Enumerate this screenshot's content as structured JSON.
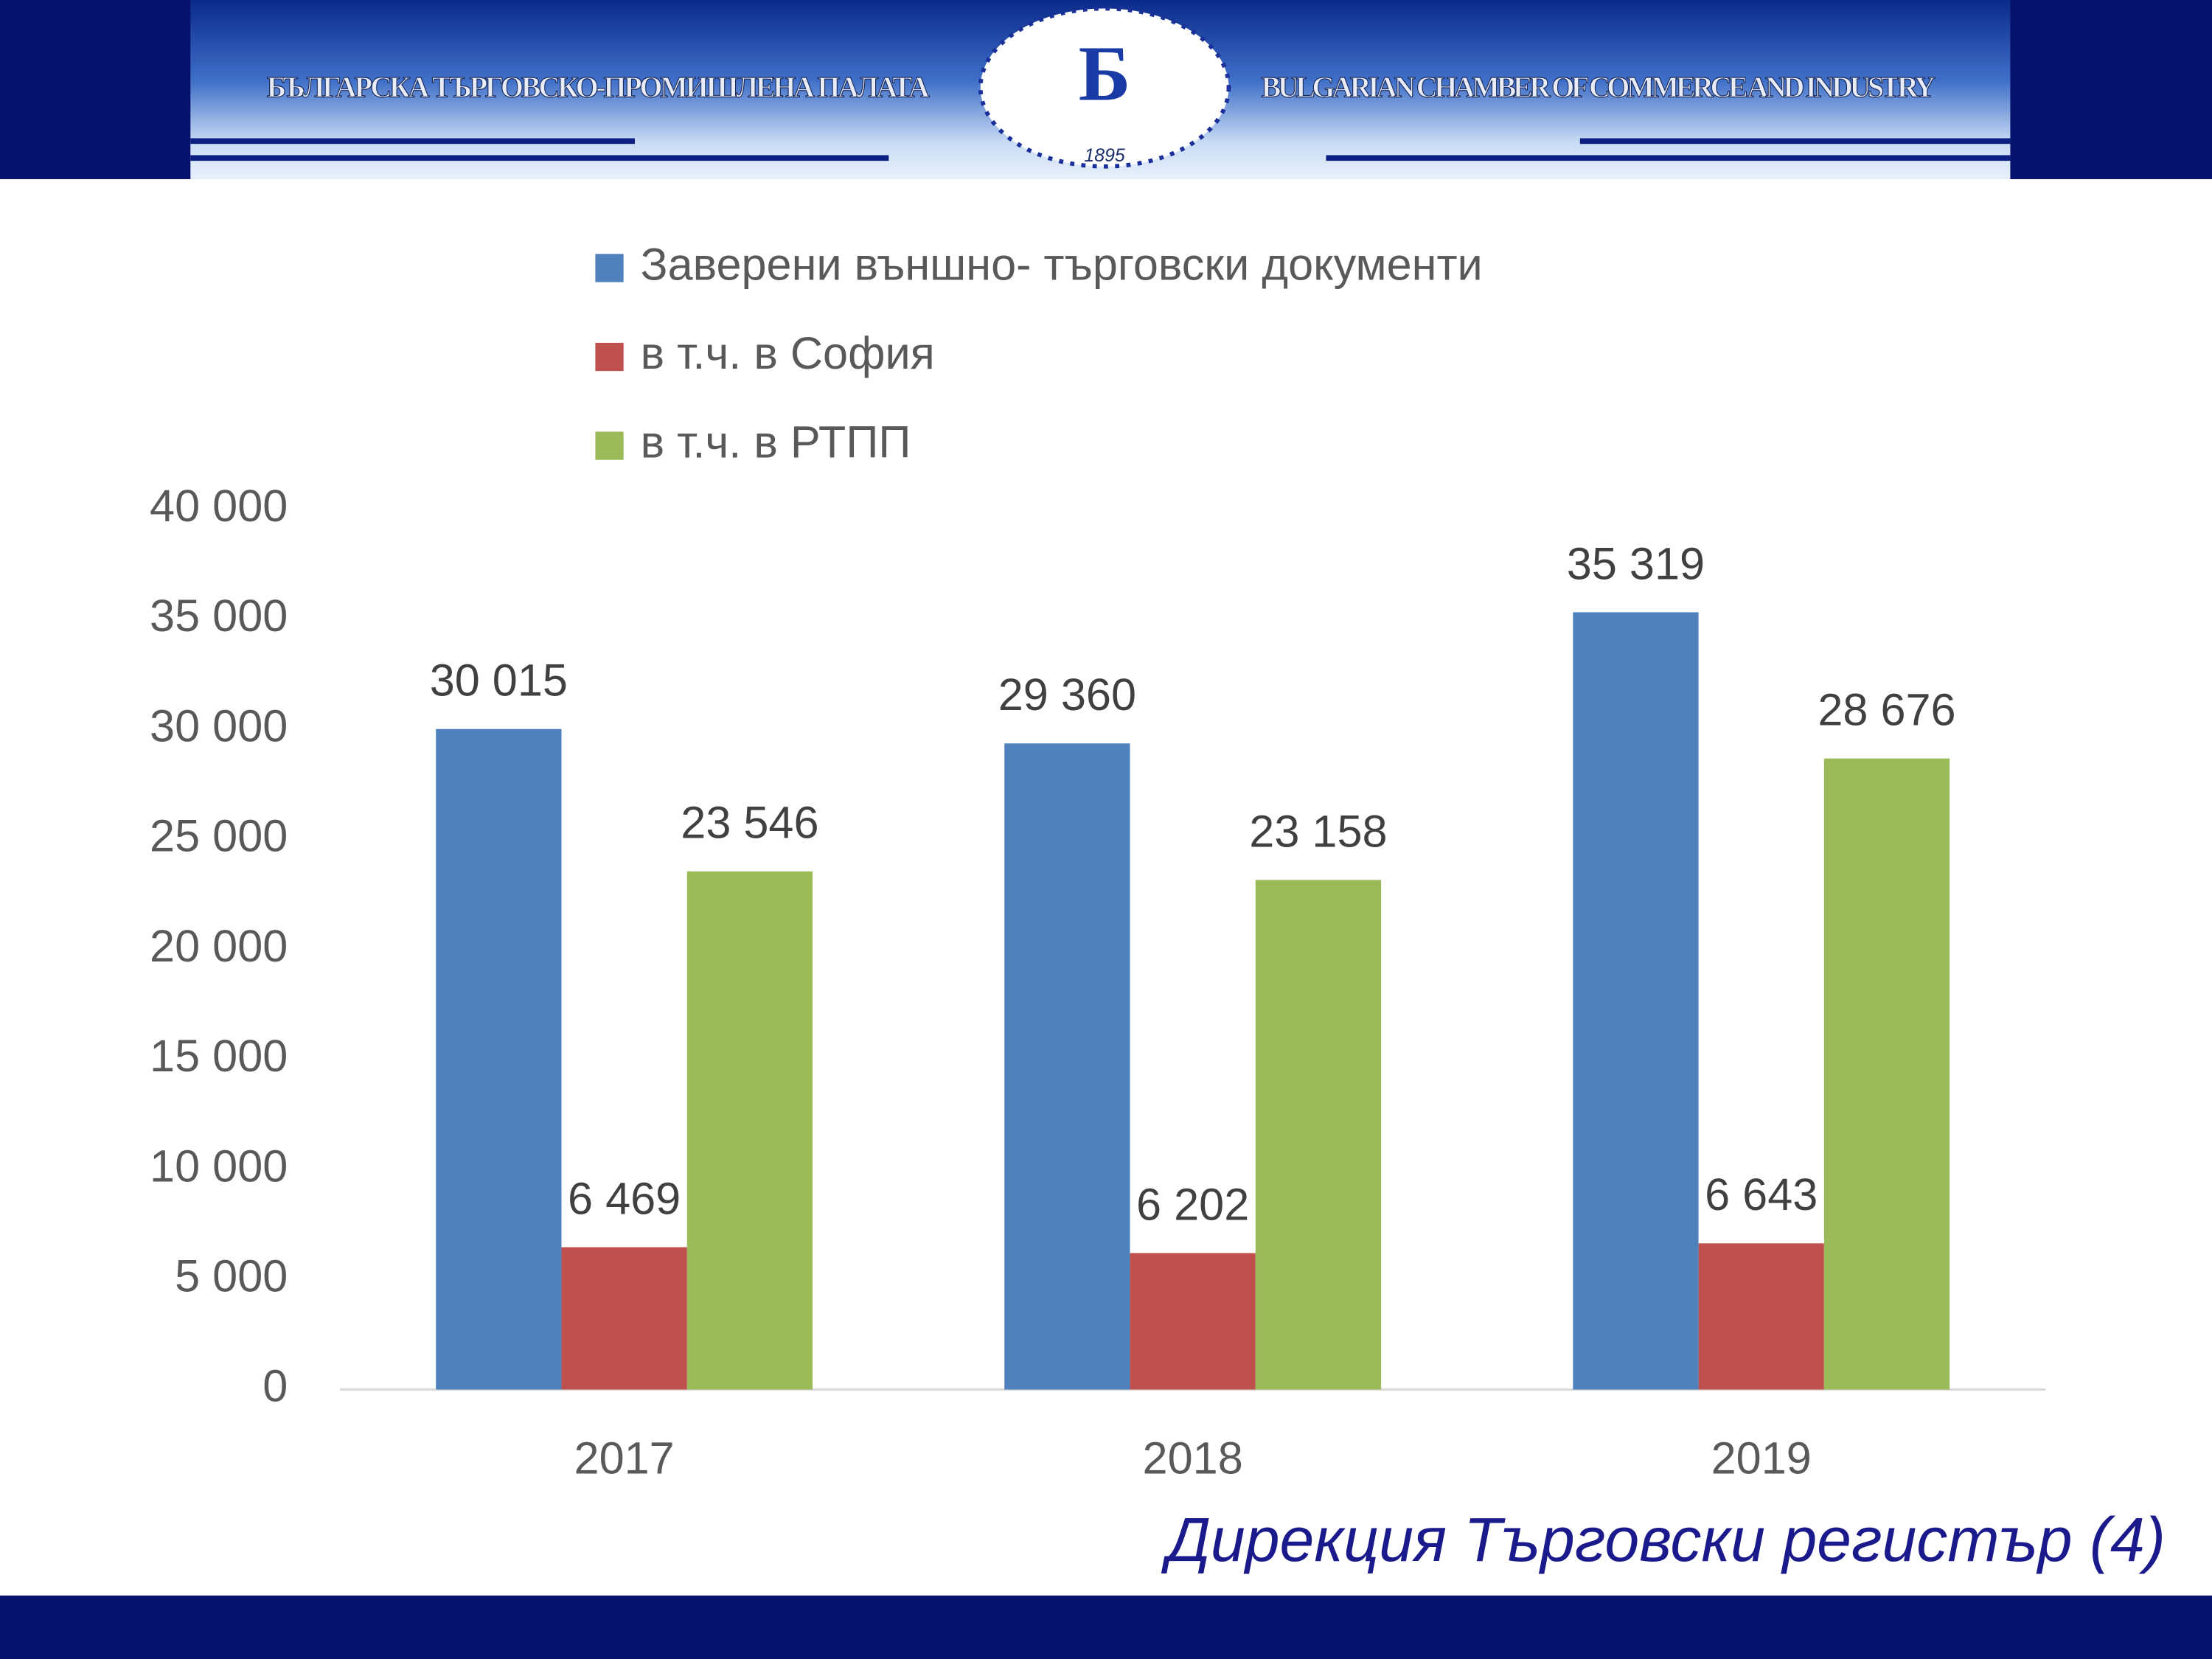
{
  "header": {
    "left_text": "БЪЛГАРСКА ТЪРГОВСКО-ПРОМИШЛЕНА ПАЛАТА",
    "right_text": "BULGARIAN CHAMBER OF COMMERCE AND INDUSTRY",
    "logo_year": "1895"
  },
  "footer": {
    "text": "Дирекция Търговски регистър (4)"
  },
  "chart_data": {
    "type": "bar",
    "categories": [
      "2017",
      "2018",
      "2019"
    ],
    "series": [
      {
        "name": "Заверени външно- търговски документи",
        "color": "#4f81bd",
        "values": [
          30015,
          29360,
          35319
        ],
        "value_labels": [
          "30 015",
          "29 360",
          "35 319"
        ]
      },
      {
        "name": "в т.ч. в София",
        "color": "#c0504d",
        "values": [
          6469,
          6202,
          6643
        ],
        "value_labels": [
          "6 469",
          "6 202",
          "6 643"
        ]
      },
      {
        "name": "в т.ч. в РТПП",
        "color": "#9bbb59",
        "values": [
          23546,
          23158,
          28676
        ],
        "value_labels": [
          "23 546",
          "23 158",
          "28 676"
        ]
      }
    ],
    "ylim": [
      0,
      40000
    ],
    "yticks": [
      0,
      {
        "value": 5000,
        "label": "5 000"
      },
      {
        "value": 10000,
        "label": "10 000"
      },
      {
        "value": 15000,
        "label": "15 000"
      },
      {
        "value": 20000,
        "label": "20 000"
      },
      {
        "value": 25000,
        "label": "25 000"
      },
      {
        "value": 30000,
        "label": "30 000"
      },
      {
        "value": 35000,
        "label": "35 000"
      },
      {
        "value": 40000,
        "label": "40 000"
      }
    ],
    "grid": false,
    "legend": "top"
  }
}
